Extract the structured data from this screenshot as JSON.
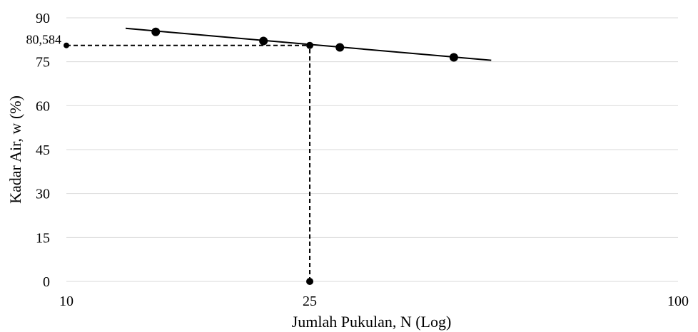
{
  "chart_data": {
    "type": "scatter",
    "x_scale": "log",
    "xlim": [
      10,
      100
    ],
    "ylim": [
      0,
      90
    ],
    "xticks": [
      10,
      25,
      100
    ],
    "yticks": [
      0,
      15,
      30,
      45,
      60,
      75,
      90
    ],
    "xlabel": "Jumlah Pukulan, N (Log)",
    "ylabel": "Kadar Air, w (%)",
    "grid": "horizontal",
    "points": [
      {
        "x": 14,
        "y": 85.2
      },
      {
        "x": 21,
        "y": 82.1
      },
      {
        "x": 28,
        "y": 79.9
      },
      {
        "x": 43,
        "y": 76.5
      }
    ],
    "trendline": [
      {
        "x": 12.5,
        "y": 86.4
      },
      {
        "x": 49.5,
        "y": 75.5
      }
    ],
    "marker_point": {
      "x": 25,
      "y": 80.584
    },
    "reference_lines": {
      "vertical": {
        "x": 25,
        "y_from": 0,
        "y_to": 80.584
      },
      "horizontal": {
        "y": 80.584,
        "x_from": 10,
        "x_to": 25
      }
    },
    "annotation": {
      "label": "80,584",
      "x": 10,
      "y": 80.584
    },
    "colors": {
      "data": "#000000",
      "grid": "#d9d9d9"
    }
  }
}
